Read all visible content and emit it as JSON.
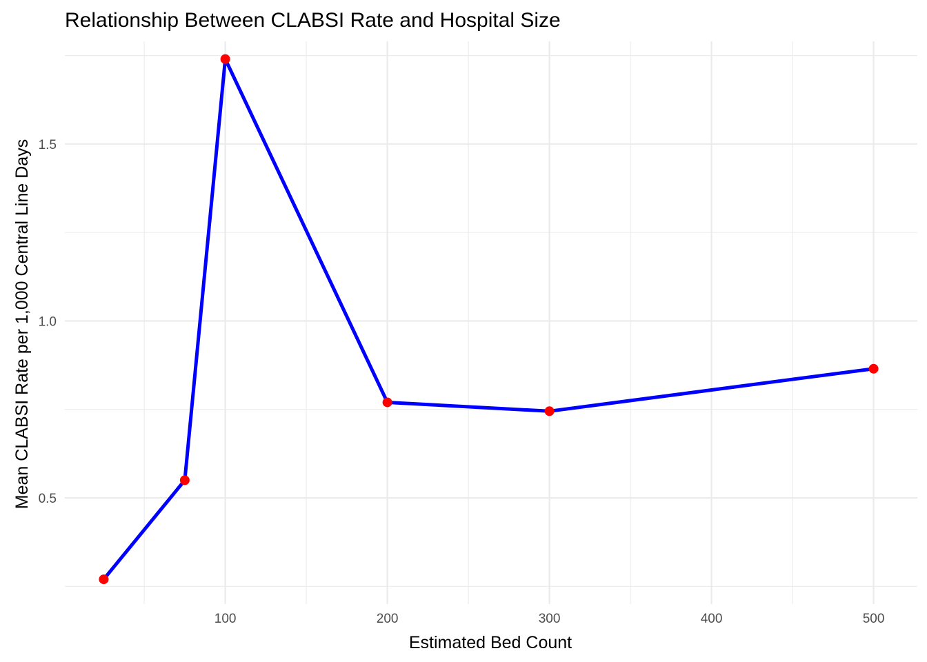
{
  "chart_data": {
    "type": "line",
    "title": "Relationship Between CLABSI Rate and Hospital Size",
    "xlabel": "Estimated Bed Count",
    "ylabel": "Mean CLABSI Rate per 1,000 Central Line Days",
    "x": [
      25,
      75,
      100,
      200,
      300,
      500
    ],
    "y": [
      0.27,
      0.55,
      1.74,
      0.77,
      0.745,
      0.865
    ],
    "xlim": [
      1,
      527
    ],
    "ylim": [
      0.2,
      1.79
    ],
    "x_ticks": [
      100,
      200,
      300,
      400,
      500
    ],
    "x_minor_ticks": [
      50,
      150,
      250,
      350,
      450
    ],
    "y_ticks": [
      0.5,
      1.0,
      1.5
    ],
    "y_tick_labels": [
      "0.5",
      "1.0",
      "1.5"
    ],
    "y_minor_ticks": [
      0.25,
      0.75,
      1.25,
      1.75
    ],
    "grid": true,
    "legend": "none",
    "colors": {
      "line": "#0000ff",
      "points": "#ff0000",
      "grid": "#ebebeb",
      "tick_text": "#4d4d4d"
    }
  }
}
